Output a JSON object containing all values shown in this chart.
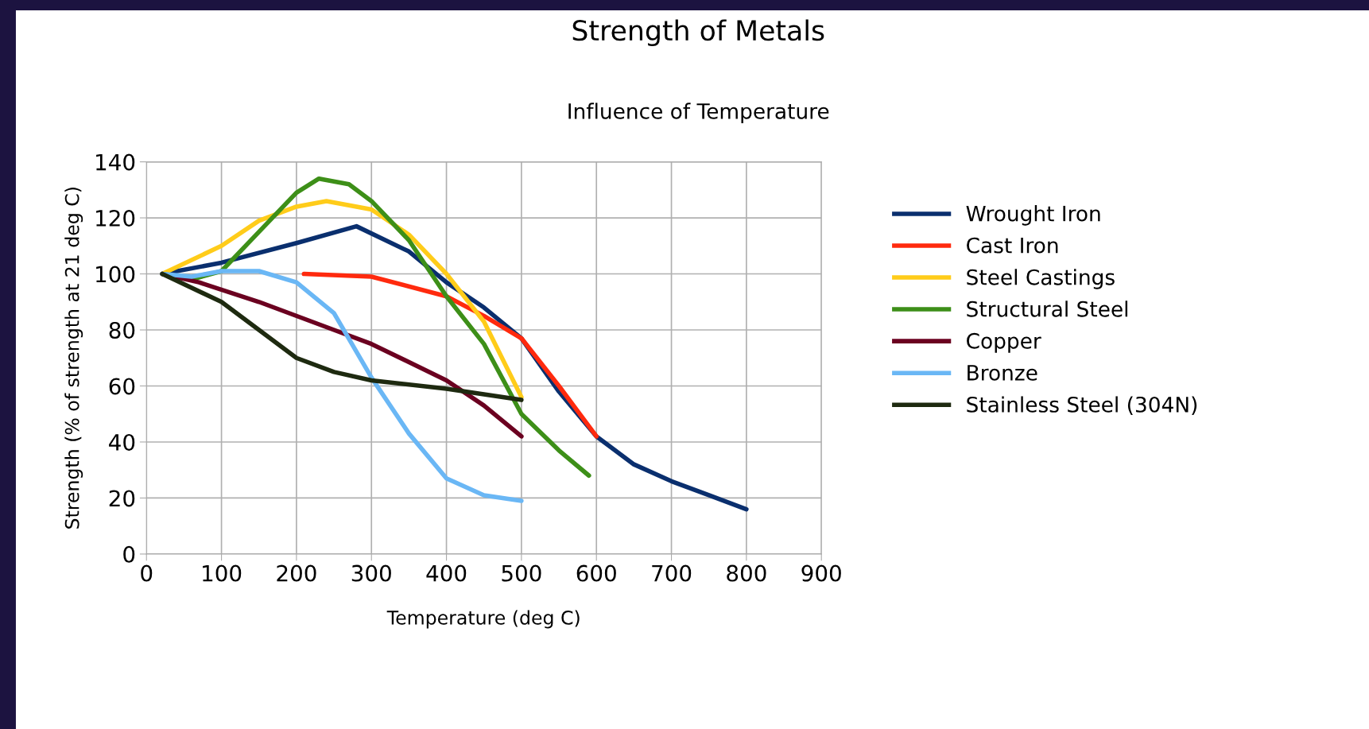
{
  "chart_data": {
    "type": "line",
    "title": "Strength of Metals",
    "subtitle": "Influence of Temperature",
    "xlabel": "Temperature (deg C)",
    "ylabel": "Strength (% of strength at 21 deg C)",
    "xlim": [
      0,
      900
    ],
    "xticks": [
      0,
      100,
      200,
      300,
      400,
      500,
      600,
      700,
      800,
      900
    ],
    "ylim": [
      0,
      140
    ],
    "yticks": [
      0,
      20,
      40,
      60,
      80,
      100,
      120,
      140
    ],
    "grid": true,
    "legend": "right",
    "marker": "none",
    "line_style": "solid",
    "series": [
      {
        "name": "Wrought Iron",
        "color": "#0a2f6e",
        "x": [
          21,
          100,
          200,
          280,
          350,
          400,
          450,
          500,
          550,
          600,
          650,
          700,
          750,
          800
        ],
        "values": [
          100,
          104,
          111,
          117,
          108,
          97,
          88,
          77,
          58,
          42,
          32,
          26,
          21,
          16
        ]
      },
      {
        "name": "Cast Iron",
        "color": "#ff2a0e",
        "x": [
          210,
          300,
          400,
          450,
          500,
          550,
          600
        ],
        "values": [
          100,
          99,
          92,
          85,
          77,
          60,
          42
        ]
      },
      {
        "name": "Steel Castings",
        "color": "#ffcc1a",
        "x": [
          21,
          100,
          150,
          200,
          240,
          300,
          350,
          400,
          450,
          500
        ],
        "values": [
          100,
          110,
          119,
          124,
          126,
          123,
          114,
          100,
          83,
          56
        ]
      },
      {
        "name": "Structural Steel",
        "color": "#3d8f18",
        "x": [
          21,
          60,
          100,
          150,
          200,
          230,
          270,
          300,
          350,
          400,
          450,
          500,
          550,
          590
        ],
        "values": [
          100,
          98,
          101,
          115,
          129,
          134,
          132,
          126,
          112,
          92,
          75,
          50,
          37,
          28
        ]
      },
      {
        "name": "Copper",
        "color": "#6b0020",
        "x": [
          21,
          70,
          150,
          250,
          300,
          400,
          450,
          500
        ],
        "values": [
          100,
          97,
          90,
          80,
          75,
          62,
          53,
          42
        ]
      },
      {
        "name": "Bronze",
        "color": "#6ab7f5",
        "x": [
          21,
          60,
          100,
          150,
          200,
          250,
          300,
          350,
          400,
          450,
          500
        ],
        "values": [
          100,
          99,
          101,
          101,
          97,
          86,
          63,
          43,
          27,
          21,
          19
        ]
      },
      {
        "name": "Stainless Steel (304N)",
        "color": "#1e2a10",
        "x": [
          21,
          100,
          150,
          200,
          250,
          300,
          400,
          450,
          500
        ],
        "values": [
          100,
          90,
          80,
          70,
          65,
          62,
          59,
          57,
          55
        ]
      }
    ]
  }
}
